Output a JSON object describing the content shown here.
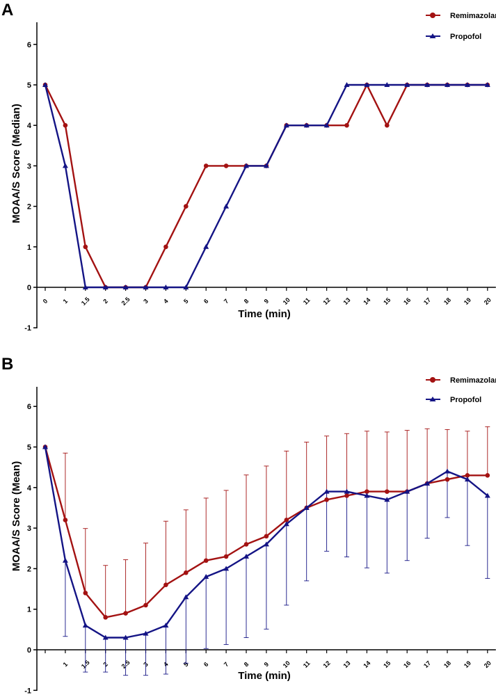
{
  "colors": {
    "remimazolam": "#a31212",
    "propofol": "#141485",
    "axis": "#000000"
  },
  "chart_data": [
    {
      "panel": "A",
      "type": "line",
      "categories": [
        "0",
        "1",
        "1.5",
        "2",
        "2.5",
        "3",
        "4",
        "5",
        "6",
        "7",
        "8",
        "9",
        "10",
        "11",
        "12",
        "13",
        "14",
        "15",
        "16",
        "17",
        "18",
        "19",
        "20"
      ],
      "series": [
        {
          "name": "Remimazolam",
          "marker": "circle",
          "color": "#a31212",
          "values": [
            5,
            4,
            1,
            0,
            0,
            0,
            1,
            2,
            3,
            3,
            3,
            3,
            4,
            4,
            4,
            4,
            5,
            4,
            5,
            5,
            5,
            5,
            5
          ]
        },
        {
          "name": "Propofol",
          "marker": "triangle",
          "color": "#141485",
          "values": [
            5,
            3,
            0,
            0,
            0,
            0,
            0,
            0,
            1,
            2,
            3,
            3,
            4,
            4,
            4,
            5,
            5,
            5,
            5,
            5,
            5,
            5,
            5
          ]
        }
      ],
      "xlabel": "Time (min)",
      "ylabel": "MOAA/S Score (Median)",
      "yticks": [
        "-1",
        "0",
        "1",
        "2",
        "3",
        "4",
        "5",
        "6"
      ],
      "ylim": [
        -1,
        6.5
      ],
      "legend": "top-right",
      "error_bars": false
    },
    {
      "panel": "B",
      "type": "line",
      "categories": [
        "",
        "1",
        "1.5",
        "2",
        "2.5",
        "3",
        "4",
        "5",
        "6",
        "7",
        "8",
        "9",
        "10",
        "11",
        "12",
        "13",
        "14",
        "15",
        "16",
        "17",
        "18",
        "19",
        "20"
      ],
      "series": [
        {
          "name": "Remimazolam",
          "marker": "circle",
          "color": "#a31212",
          "values": [
            5,
            3.2,
            1.4,
            0.8,
            0.9,
            1.1,
            1.6,
            1.9,
            2.2,
            2.3,
            2.6,
            2.8,
            3.2,
            3.5,
            3.7,
            3.8,
            3.9,
            3.9,
            3.9,
            4.1,
            4.2,
            4.3,
            4.3
          ],
          "error_upper": [
            5,
            4.85,
            2.99,
            2.08,
            2.22,
            2.63,
            3.17,
            3.45,
            3.74,
            3.93,
            4.31,
            4.53,
            4.9,
            5.12,
            5.27,
            5.33,
            5.39,
            5.37,
            5.41,
            5.45,
            5.43,
            5.39,
            5.5
          ]
        },
        {
          "name": "Propofol",
          "marker": "triangle",
          "color": "#141485",
          "values": [
            5,
            2.2,
            0.6,
            0.3,
            0.3,
            0.4,
            0.6,
            1.3,
            1.8,
            2.0,
            2.3,
            2.6,
            3.1,
            3.5,
            3.9,
            3.9,
            3.8,
            3.7,
            3.9,
            4.1,
            4.4,
            4.2,
            3.8
          ],
          "error_lower": [
            5,
            0.33,
            -0.55,
            -0.55,
            -0.63,
            -0.63,
            -0.6,
            -0.33,
            0.03,
            0.13,
            0.3,
            0.51,
            1.1,
            1.7,
            2.43,
            2.29,
            2.02,
            1.89,
            2.2,
            2.75,
            3.26,
            2.57,
            1.76
          ]
        }
      ],
      "xlabel": "Time (min)",
      "ylabel": "MOAA/S Score (Mean)",
      "yticks": [
        "-1",
        "0",
        "1",
        "2",
        "3",
        "4",
        "5",
        "6"
      ],
      "ylim": [
        -1,
        6.5
      ],
      "legend": "top-right",
      "error_bars": true
    }
  ]
}
